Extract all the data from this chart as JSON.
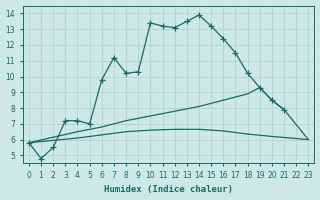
{
  "xlabel": "Humidex (Indice chaleur)",
  "bg_color": "#cde8e5",
  "grid_color": "#b0d4d0",
  "line_color": "#1a6b63",
  "xlim": [
    -0.5,
    23.5
  ],
  "ylim": [
    4.5,
    14.5
  ],
  "xticks": [
    0,
    1,
    2,
    3,
    4,
    5,
    6,
    7,
    8,
    9,
    10,
    11,
    12,
    13,
    14,
    15,
    16,
    17,
    18,
    19,
    20,
    21,
    22,
    23
  ],
  "yticks": [
    5,
    6,
    7,
    8,
    9,
    10,
    11,
    12,
    13,
    14
  ],
  "line1_x": [
    0,
    1,
    2,
    3,
    4,
    5,
    6,
    7,
    8,
    9,
    10,
    11,
    12,
    13,
    14,
    15,
    16,
    17,
    18,
    19,
    20,
    21
  ],
  "line1_y": [
    5.8,
    4.8,
    5.5,
    7.2,
    7.2,
    7.0,
    9.8,
    11.2,
    10.2,
    10.3,
    13.4,
    13.2,
    13.1,
    13.5,
    13.9,
    13.2,
    12.4,
    11.5,
    10.2,
    9.3,
    8.5,
    7.9
  ],
  "line2_x": [
    0,
    4,
    6,
    8,
    10,
    12,
    14,
    16,
    18,
    20,
    23
  ],
  "line2_y": [
    5.8,
    6.1,
    6.3,
    6.5,
    6.6,
    6.65,
    6.65,
    6.55,
    6.35,
    6.2,
    6.0
  ],
  "line3_x": [
    0,
    4,
    6,
    8,
    10,
    12,
    14,
    15,
    16,
    17,
    18,
    19,
    20,
    21,
    23
  ],
  "line3_y": [
    5.8,
    6.5,
    6.8,
    7.2,
    7.5,
    7.8,
    8.1,
    8.3,
    8.5,
    8.7,
    8.9,
    9.3,
    8.5,
    7.9,
    6.0
  ]
}
